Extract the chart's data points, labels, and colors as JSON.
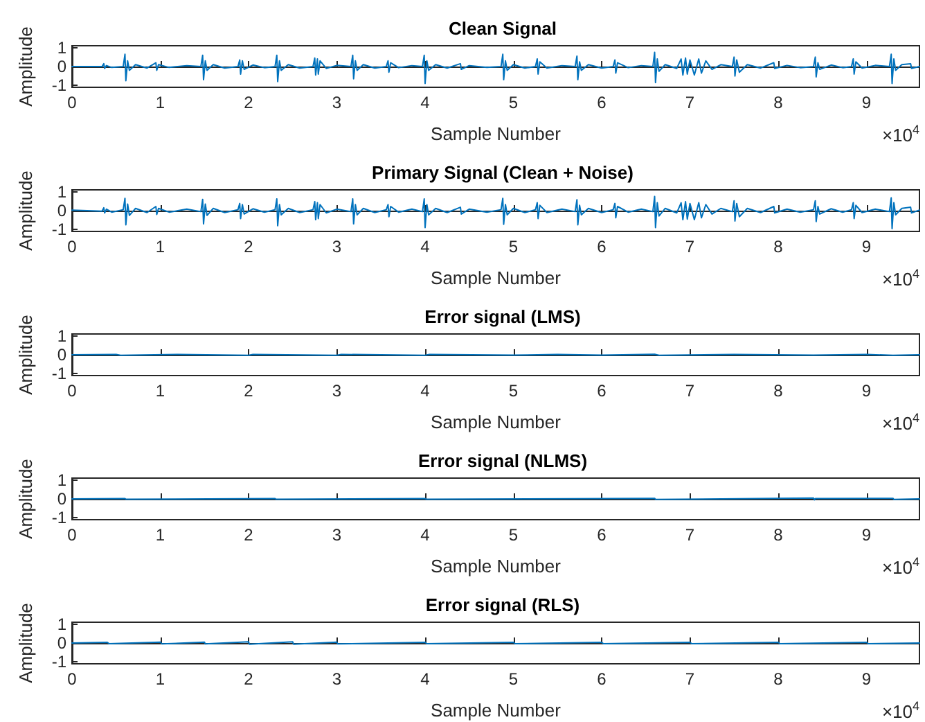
{
  "chart_data": [
    {
      "type": "line",
      "title": "Clean Signal",
      "xlabel": "Sample Number",
      "ylabel": "Amplitude",
      "annotations": [
        "×10$^{4}$"
      ],
      "xlim": [
        0,
        9.6
      ],
      "ylim": [
        -1.1,
        1.1
      ],
      "yticks": [
        -1,
        0,
        1
      ],
      "xticks": [
        0,
        1,
        2,
        3,
        4,
        5,
        6,
        7,
        8,
        9
      ],
      "marker": "none",
      "series": [
        {
          "color": "#0072bd",
          "x": [
            0,
            0.34,
            0.36,
            0.37,
            0.39,
            0.45,
            0.58,
            0.6,
            0.61,
            0.63,
            0.65,
            0.72,
            0.85,
            0.95,
            0.96,
            0.98,
            1.1,
            1.3,
            1.46,
            1.48,
            1.49,
            1.51,
            1.53,
            1.6,
            1.73,
            1.88,
            1.9,
            1.91,
            1.93,
            1.95,
            2.05,
            2.18,
            2.3,
            2.32,
            2.33,
            2.35,
            2.37,
            2.45,
            2.58,
            2.73,
            2.75,
            2.76,
            2.78,
            2.79,
            2.81,
            2.88,
            3.0,
            3.16,
            3.18,
            3.19,
            3.21,
            3.23,
            3.3,
            3.43,
            3.56,
            3.58,
            3.59,
            3.61,
            3.7,
            3.85,
            3.97,
            3.99,
            4.0,
            4.02,
            4.04,
            4.12,
            4.25,
            4.4,
            4.41,
            4.5,
            4.7,
            4.86,
            4.88,
            4.89,
            4.91,
            4.93,
            5.0,
            5.13,
            5.25,
            5.27,
            5.28,
            5.3,
            5.38,
            5.55,
            5.7,
            5.72,
            5.73,
            5.75,
            5.77,
            5.85,
            6.0,
            6.13,
            6.15,
            6.16,
            6.18,
            6.3,
            6.45,
            6.58,
            6.6,
            6.61,
            6.63,
            6.65,
            6.72,
            6.85,
            6.9,
            6.92,
            6.95,
            6.97,
            7.0,
            7.05,
            7.1,
            7.13,
            7.18,
            7.25,
            7.35,
            7.48,
            7.5,
            7.51,
            7.53,
            7.56,
            7.65,
            7.8,
            7.95,
            7.96,
            8.1,
            8.25,
            8.4,
            8.42,
            8.43,
            8.45,
            8.47,
            8.6,
            8.73,
            8.83,
            8.85,
            8.86,
            8.88,
            8.95,
            9.1,
            9.26,
            9.28,
            9.29,
            9.31,
            9.33,
            9.4,
            9.5,
            9.51,
            9.6
          ],
          "values": [
            0,
            0,
            0.15,
            -0.1,
            0.05,
            -0.05,
            0,
            0.65,
            -0.75,
            0.3,
            -0.2,
            0.1,
            -0.08,
            0.2,
            -0.2,
            0.1,
            -0.05,
            0.05,
            0,
            0.6,
            -0.7,
            0.3,
            -0.2,
            0.1,
            -0.08,
            0,
            0.35,
            -0.4,
            0.3,
            -0.15,
            0.08,
            -0.06,
            0,
            0.6,
            -0.8,
            0.3,
            -0.2,
            0.1,
            -0.08,
            0,
            0.45,
            -0.45,
            0.4,
            -0.4,
            0.3,
            -0.1,
            0.06,
            0,
            0.6,
            -0.65,
            0.3,
            -0.2,
            0.1,
            -0.08,
            0,
            0.3,
            -0.3,
            0.2,
            -0.06,
            0.05,
            0,
            0.6,
            -0.9,
            0.3,
            -0.2,
            0.1,
            -0.08,
            0.15,
            -0.15,
            0.05,
            -0.05,
            0,
            0.65,
            -0.7,
            0.3,
            -0.2,
            0.1,
            -0.08,
            0,
            0.4,
            -0.4,
            0.25,
            -0.08,
            0.05,
            0,
            0.55,
            -0.7,
            0.25,
            -0.2,
            0.1,
            -0.08,
            0,
            0.35,
            -0.35,
            0.2,
            -0.06,
            0.05,
            0,
            0.75,
            -0.85,
            0.4,
            -0.25,
            0.1,
            -0.1,
            0.4,
            -0.45,
            0.45,
            -0.4,
            0.35,
            -0.45,
            0.4,
            -0.35,
            0.3,
            -0.15,
            0.1,
            0,
            0.5,
            -0.5,
            0.35,
            -0.3,
            0.1,
            -0.08,
            0.2,
            -0.1,
            0.06,
            -0.06,
            0,
            0.5,
            -0.55,
            0.2,
            -0.15,
            0.08,
            -0.06,
            0,
            0.4,
            -0.4,
            0.25,
            -0.08,
            0.06,
            0,
            0.65,
            -0.9,
            0.4,
            -0.2,
            0.1,
            0.15,
            -0.1,
            0
          ]
        }
      ]
    },
    {
      "type": "line",
      "title": "Primary Signal (Clean + Noise)",
      "xlabel": "Sample Number",
      "ylabel": "Amplitude",
      "annotations": [
        "×10$^{4}$"
      ],
      "xlim": [
        0,
        9.6
      ],
      "ylim": [
        -1.1,
        1.1
      ],
      "yticks": [
        -1,
        0,
        1
      ],
      "xticks": [
        0,
        1,
        2,
        3,
        4,
        5,
        6,
        7,
        8,
        9
      ],
      "marker": "none",
      "series": [
        {
          "color": "#0072bd",
          "x": [
            0,
            0.34,
            0.36,
            0.37,
            0.39,
            0.45,
            0.58,
            0.6,
            0.61,
            0.63,
            0.65,
            0.72,
            0.85,
            0.95,
            0.96,
            0.98,
            1.1,
            1.3,
            1.46,
            1.48,
            1.49,
            1.51,
            1.53,
            1.6,
            1.73,
            1.88,
            1.9,
            1.91,
            1.93,
            1.95,
            2.05,
            2.18,
            2.3,
            2.32,
            2.33,
            2.35,
            2.37,
            2.45,
            2.58,
            2.73,
            2.75,
            2.76,
            2.78,
            2.79,
            2.81,
            2.88,
            3.0,
            3.16,
            3.18,
            3.19,
            3.21,
            3.23,
            3.3,
            3.43,
            3.56,
            3.58,
            3.59,
            3.61,
            3.7,
            3.85,
            3.97,
            3.99,
            4.0,
            4.02,
            4.04,
            4.12,
            4.25,
            4.4,
            4.41,
            4.5,
            4.7,
            4.86,
            4.88,
            4.89,
            4.91,
            4.93,
            5.0,
            5.13,
            5.25,
            5.27,
            5.28,
            5.3,
            5.38,
            5.55,
            5.7,
            5.72,
            5.73,
            5.75,
            5.77,
            5.85,
            6.0,
            6.13,
            6.15,
            6.16,
            6.18,
            6.3,
            6.45,
            6.58,
            6.6,
            6.61,
            6.63,
            6.65,
            6.72,
            6.85,
            6.9,
            6.92,
            6.95,
            6.97,
            7.0,
            7.05,
            7.1,
            7.13,
            7.18,
            7.25,
            7.35,
            7.48,
            7.5,
            7.51,
            7.53,
            7.56,
            7.65,
            7.8,
            7.95,
            7.96,
            8.1,
            8.25,
            8.4,
            8.42,
            8.43,
            8.45,
            8.47,
            8.6,
            8.73,
            8.83,
            8.85,
            8.86,
            8.88,
            8.95,
            9.1,
            9.26,
            9.28,
            9.29,
            9.31,
            9.33,
            9.4,
            9.5,
            9.51,
            9.6
          ],
          "values": [
            0.03,
            -0.03,
            0.15,
            -0.12,
            0.08,
            -0.08,
            0.05,
            0.65,
            -0.75,
            0.35,
            -0.25,
            0.12,
            -0.1,
            0.22,
            -0.2,
            0.12,
            -0.08,
            0.08,
            -0.05,
            0.6,
            -0.7,
            0.35,
            -0.25,
            0.12,
            -0.1,
            0.05,
            0.38,
            -0.42,
            0.32,
            -0.18,
            0.1,
            -0.08,
            0.05,
            0.62,
            -0.8,
            0.32,
            -0.22,
            0.12,
            -0.1,
            0.05,
            0.48,
            -0.48,
            0.42,
            -0.42,
            0.32,
            -0.12,
            0.08,
            -0.05,
            0.62,
            -0.7,
            0.32,
            -0.22,
            0.12,
            -0.1,
            0.05,
            0.32,
            -0.32,
            0.22,
            -0.08,
            0.08,
            -0.05,
            0.62,
            -0.9,
            0.32,
            -0.22,
            0.12,
            -0.1,
            0.18,
            -0.18,
            0.08,
            -0.08,
            0.05,
            0.65,
            -0.72,
            0.32,
            -0.22,
            0.12,
            -0.1,
            0.05,
            0.42,
            -0.42,
            0.28,
            -0.1,
            0.08,
            -0.05,
            0.58,
            -0.75,
            0.28,
            -0.22,
            0.12,
            -0.1,
            0.05,
            0.38,
            -0.38,
            0.22,
            -0.08,
            0.08,
            -0.05,
            0.75,
            -0.9,
            0.42,
            -0.28,
            0.12,
            -0.12,
            0.42,
            -0.48,
            0.48,
            -0.45,
            0.38,
            -0.48,
            0.42,
            -0.38,
            0.32,
            -0.18,
            0.12,
            -0.05,
            0.52,
            -0.55,
            0.38,
            -0.32,
            0.12,
            -0.1,
            0.22,
            -0.12,
            0.08,
            -0.08,
            0.05,
            0.52,
            -0.58,
            0.22,
            -0.18,
            0.1,
            -0.08,
            0.05,
            0.42,
            -0.42,
            0.28,
            -0.1,
            0.08,
            -0.05,
            0.68,
            -0.95,
            0.42,
            -0.22,
            0.12,
            0.18,
            -0.12,
            0.03
          ]
        }
      ]
    },
    {
      "type": "line",
      "title": "Error signal (LMS)",
      "xlabel": "Sample Number",
      "ylabel": "Amplitude",
      "annotations": [
        "×10$^{4}$"
      ],
      "xlim": [
        0,
        9.6
      ],
      "ylim": [
        -1.1,
        1.1
      ],
      "yticks": [
        -1,
        0,
        1
      ],
      "xticks": [
        0,
        1,
        2,
        3,
        4,
        5,
        6,
        7,
        8,
        9
      ],
      "marker": "none",
      "series": [
        {
          "color": "#0072bd",
          "x": [
            0,
            0.5,
            0.55,
            1.2,
            2.0,
            2.05,
            3.0,
            3.05,
            4.0,
            4.05,
            5.0,
            5.5,
            6.0,
            6.6,
            6.65,
            7.5,
            8.4,
            9.0,
            9.3,
            9.6
          ],
          "values": [
            0,
            0.02,
            -0.03,
            0.02,
            -0.03,
            0.02,
            -0.03,
            0.02,
            -0.03,
            0.02,
            -0.02,
            0.02,
            -0.02,
            0.03,
            -0.03,
            0.02,
            -0.02,
            0.02,
            -0.03,
            0
          ]
        }
      ]
    },
    {
      "type": "line",
      "title": "Error signal (NLMS)",
      "xlabel": "Sample Number",
      "ylabel": "Amplitude",
      "annotations": [
        "×10$^{4}$"
      ],
      "xlim": [
        0,
        9.6
      ],
      "ylim": [
        -1.1,
        1.1
      ],
      "yticks": [
        -1,
        0,
        1
      ],
      "xticks": [
        0,
        1,
        2,
        3,
        4,
        5,
        6,
        7,
        8,
        9
      ],
      "marker": "none",
      "series": [
        {
          "color": "#0072bd",
          "x": [
            0,
            0.6,
            0.61,
            2.3,
            2.31,
            4.0,
            4.01,
            6.6,
            6.61,
            8.4,
            8.41,
            8.42,
            9.3,
            9.31,
            9.6
          ],
          "values": [
            0,
            0.02,
            -0.02,
            0.02,
            -0.02,
            0.02,
            -0.02,
            0.03,
            -0.03,
            0.05,
            -0.05,
            0.02,
            0.03,
            -0.03,
            0
          ]
        }
      ]
    },
    {
      "type": "line",
      "title": "Error signal (RLS)",
      "xlabel": "Sample Number",
      "ylabel": "Amplitude",
      "annotations": [
        "×10$^{4}$"
      ],
      "xlim": [
        0,
        9.6
      ],
      "ylim": [
        -1.1,
        1.1
      ],
      "yticks": [
        -1,
        0,
        1
      ],
      "xticks": [
        0,
        1,
        2,
        3,
        4,
        5,
        6,
        7,
        8,
        9
      ],
      "marker": "none",
      "series": [
        {
          "color": "#0072bd",
          "x": [
            0,
            0.4,
            0.42,
            1.0,
            1.02,
            1.5,
            1.51,
            2.0,
            2.01,
            2.5,
            2.51,
            3.0,
            3.01,
            4.0,
            4.02,
            5.0,
            5.02,
            6.0,
            6.02,
            7.0,
            7.02,
            8.0,
            8.02,
            9.0,
            9.02,
            9.6
          ],
          "values": [
            0,
            0.04,
            -0.04,
            0.05,
            -0.05,
            0.05,
            -0.05,
            0.06,
            -0.06,
            0.06,
            -0.06,
            0.05,
            -0.05,
            0.04,
            -0.04,
            0.04,
            -0.04,
            0.04,
            -0.04,
            0.04,
            -0.04,
            0.04,
            -0.04,
            0.04,
            -0.04,
            0
          ]
        }
      ]
    }
  ]
}
